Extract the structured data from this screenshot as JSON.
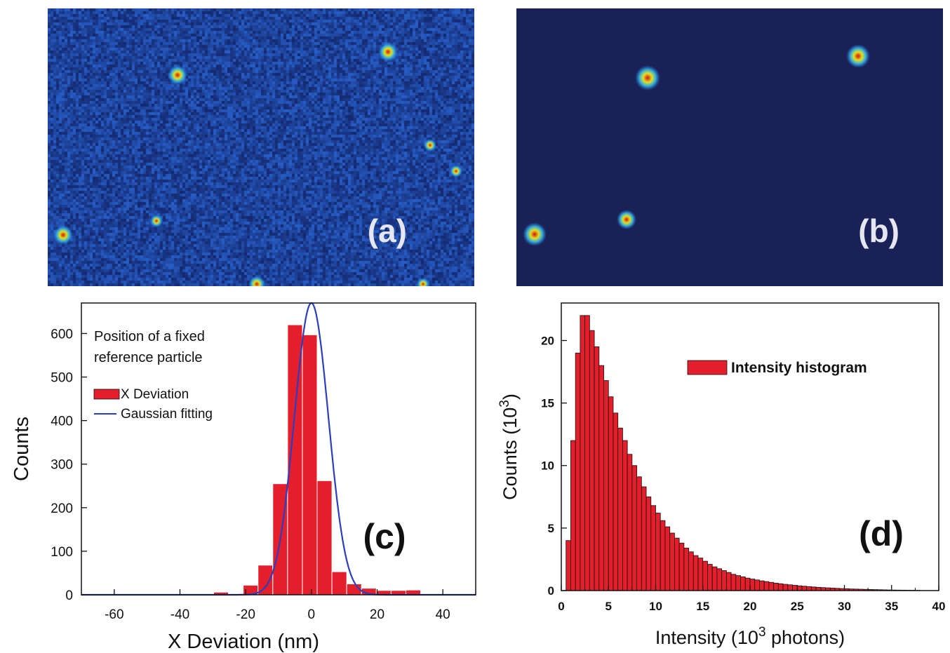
{
  "panel_a": {
    "label": "(a)",
    "colors": {
      "background": "#1a2f86",
      "spot_core": "#cc1010",
      "spot_mid": "#e8e020",
      "spot_outer": "#30b0e0"
    }
  },
  "panel_b": {
    "label": "(b)",
    "colors": {
      "background": "#1a2157",
      "spot_core": "#cc1010",
      "spot_mid": "#e8e020",
      "spot_outer": "#30b0e0"
    }
  },
  "chart_data": [
    {
      "id": "c",
      "type": "bar",
      "panel_label": "(c)",
      "title": "",
      "xlabel": "X Deviation  (nm)",
      "ylabel": "Counts",
      "xlim": [
        -70,
        50
      ],
      "ylim": [
        0,
        670
      ],
      "xticks": [
        -60,
        -40,
        -20,
        0,
        20,
        40
      ],
      "yticks": [
        0,
        100,
        200,
        300,
        400,
        500,
        600
      ],
      "annotation": [
        "Position of a fixed",
        "reference particle"
      ],
      "legend": {
        "placement": "top-left",
        "entries": [
          "X Deviation",
          "Gaussian fitting"
        ]
      },
      "bin_width": 4.5,
      "series": [
        {
          "name": "X Deviation",
          "x": [
            -68,
            -63.5,
            -59,
            -54.5,
            -50,
            -45.5,
            -41,
            -36.5,
            -32,
            -27.5,
            -23,
            -18.5,
            -14,
            -9.5,
            -5,
            -0.5,
            4,
            8.5,
            13,
            17.5,
            22,
            26.5,
            31,
            35.5,
            40,
            44.5,
            48
          ],
          "values": [
            1,
            1,
            1,
            1,
            1,
            1,
            1,
            1,
            1,
            6,
            2,
            22,
            68,
            255,
            620,
            597,
            262,
            53,
            25,
            15,
            10,
            10,
            11,
            2,
            1,
            1,
            1
          ]
        },
        {
          "name": "Gaussian fitting",
          "type": "line",
          "amplitude": 670,
          "mean": 0,
          "sigma": 5.2
        }
      ],
      "colors": {
        "bars": "#e41e2a",
        "line": "#2a3fbf"
      }
    },
    {
      "id": "d",
      "type": "bar",
      "panel_label": "(d)",
      "title": "",
      "xlabel": "Intensity (10",
      "xlabel_sup": "3",
      "xlabel_tail": " photons)",
      "ylabel": "Counts (10",
      "ylabel_sup": "3",
      "ylabel_tail": ")",
      "xlim": [
        0,
        40
      ],
      "ylim": [
        0,
        23
      ],
      "xticks": [
        0,
        5,
        10,
        15,
        20,
        25,
        30,
        35,
        40
      ],
      "yticks": [
        0,
        5,
        10,
        15,
        20
      ],
      "legend": {
        "placement": "top-right",
        "entries": [
          "Intensity histogram"
        ]
      },
      "bin_width": 0.5,
      "bin_start": 0.5,
      "series": [
        {
          "name": "Intensity histogram",
          "values": [
            4,
            12,
            19,
            22,
            22,
            20.8,
            19.5,
            18,
            16.8,
            15.5,
            14.2,
            13,
            12,
            10.9,
            10,
            9.1,
            8.3,
            7.5,
            6.8,
            6.2,
            5.6,
            5.1,
            4.6,
            4.2,
            3.8,
            3.4,
            3.1,
            2.8,
            2.6,
            2.35,
            2.1,
            1.9,
            1.75,
            1.6,
            1.45,
            1.3,
            1.2,
            1.1,
            1.0,
            0.92,
            0.85,
            0.78,
            0.72,
            0.66,
            0.6,
            0.55,
            0.5,
            0.46,
            0.42,
            0.38,
            0.35,
            0.32,
            0.29,
            0.26,
            0.24,
            0.22,
            0.2,
            0.18,
            0.16,
            0.15,
            0.13,
            0.12,
            0.11,
            0.1,
            0.09,
            0.08,
            0.07,
            0.06,
            0.05,
            0.045,
            0.04,
            0.035,
            0.03,
            0.025,
            0.02
          ]
        }
      ],
      "colors": {
        "bars": "#e41e2a"
      }
    }
  ]
}
